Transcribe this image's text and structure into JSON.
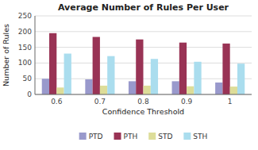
{
  "chart_data": {
    "type": "bar",
    "title": "Average Number of Rules Per User",
    "xlabel": "Confidence Threshold",
    "ylabel": "Number of Rules",
    "categories": [
      "0.6",
      "0.7",
      "0.8",
      "0.9",
      "1"
    ],
    "series": [
      {
        "name": "PTD",
        "color": "#9999cc",
        "values": [
          50,
          48,
          42,
          42,
          38
        ]
      },
      {
        "name": "PTH",
        "color": "#993355",
        "values": [
          195,
          183,
          175,
          165,
          162
        ]
      },
      {
        "name": "STD",
        "color": "#dddd99",
        "values": [
          22,
          28,
          28,
          26,
          25
        ]
      },
      {
        "name": "STH",
        "color": "#aaddee",
        "values": [
          130,
          122,
          113,
          104,
          98
        ]
      }
    ],
    "ylim": [
      0,
      250
    ],
    "yticks": [
      0,
      50,
      100,
      150,
      200,
      250
    ],
    "grid": true,
    "legend": "bottom"
  }
}
